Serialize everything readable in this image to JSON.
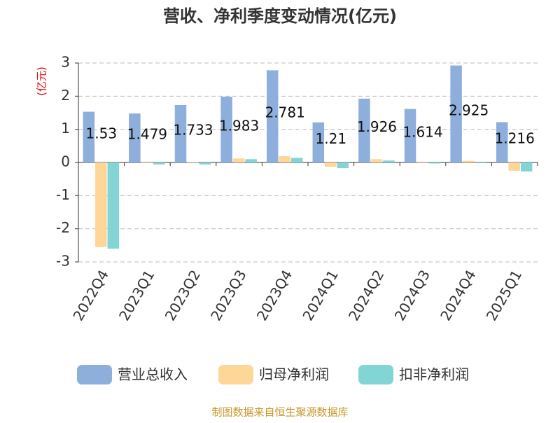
{
  "chart_data": {
    "type": "bar",
    "title": "营收、净利季度变动情况(亿元)",
    "y_label": "(亿元)",
    "source": "制图数据来自恒生聚源数据库",
    "categories": [
      "2022Q4",
      "2023Q1",
      "2023Q2",
      "2023Q3",
      "2023Q4",
      "2024Q1",
      "2024Q2",
      "2024Q3",
      "2024Q4",
      "2025Q1"
    ],
    "series": [
      {
        "name": "营业总收入",
        "color": "#8eaedc",
        "values": [
          1.53,
          1.479,
          1.733,
          1.983,
          2.781,
          1.21,
          1.926,
          1.614,
          2.925,
          1.216
        ],
        "show_labels": true
      },
      {
        "name": "归母净利润",
        "color": "#fdd698",
        "values": [
          -2.55,
          -0.02,
          0.01,
          0.12,
          0.19,
          -0.13,
          0.1,
          -0.02,
          0.05,
          -0.25
        ]
      },
      {
        "name": "扣非净利润",
        "color": "#82d5d5",
        "values": [
          -2.6,
          -0.06,
          -0.06,
          0.1,
          0.14,
          -0.17,
          0.06,
          -0.03,
          -0.02,
          -0.27
        ]
      }
    ],
    "ylim": [
      -3,
      3
    ],
    "yticks": [
      -3,
      -2,
      -1,
      0,
      1,
      2,
      3
    ],
    "grid": true
  }
}
